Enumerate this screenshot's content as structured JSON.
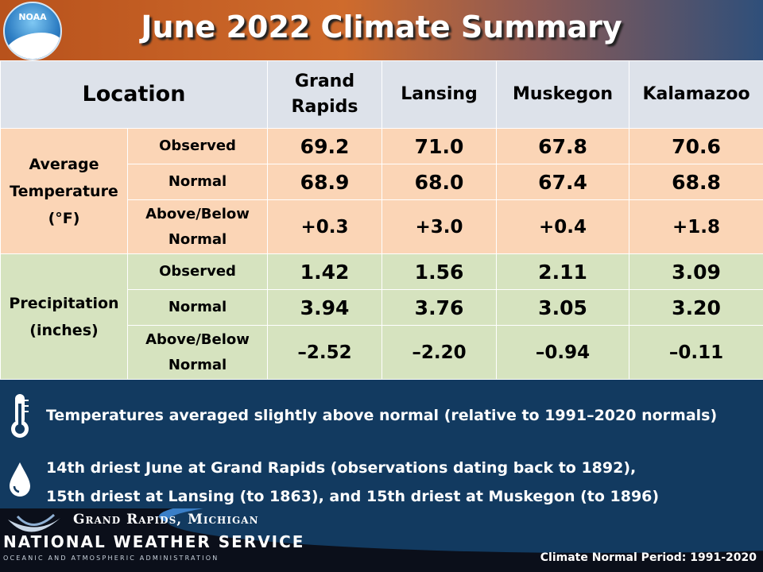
{
  "header": {
    "logo_text": "NOAA",
    "title": "June 2022 Climate Summary"
  },
  "table": {
    "location_header": "Location",
    "columns": [
      "Grand Rapids",
      "Lansing",
      "Muskegon",
      "Kalamazoo"
    ],
    "temperature": {
      "label": "Average Temperature (°F)",
      "observed_label": "Observed",
      "normal_label": "Normal",
      "diff_label": "Above/Below Normal",
      "observed": [
        "69.2",
        "71.0",
        "67.8",
        "70.6"
      ],
      "normal": [
        "68.9",
        "68.0",
        "67.4",
        "68.8"
      ],
      "diff": [
        "+0.3",
        "+3.0",
        "+0.4",
        "+1.8"
      ]
    },
    "precipitation": {
      "label": "Precipitation (inches)",
      "observed_label": "Observed",
      "normal_label": "Normal",
      "diff_label": "Above/Below Normal",
      "observed": [
        "1.42",
        "1.56",
        "2.11",
        "3.09"
      ],
      "normal": [
        "3.94",
        "3.76",
        "3.05",
        "3.20"
      ],
      "diff": [
        "–2.52",
        "–2.20",
        "–0.94",
        "–0.11"
      ]
    }
  },
  "notes": {
    "temperature": "Temperatures averaged slightly above normal (relative to 1991–2020 normals)",
    "precip_line1": "14th driest June at Grand Rapids (observations dating back to 1892),",
    "precip_line2": "15th driest at Lansing (to 1863), and 15th driest at Muskegon (to 1896)",
    "temperature_icon": "thermometer-icon",
    "precip_icon": "water-drop-icon"
  },
  "footer": {
    "office": "Grand Rapids, Michigan",
    "agency": "NATIONAL WEATHER SERVICE",
    "parent": "OCEANIC AND ATMOSPHERIC ADMINISTRATION",
    "normal_period": "Climate Normal Period: 1991-2020"
  },
  "colors": {
    "temperature_bg": "#fbd5b6",
    "precipitation_bg": "#d6e3bf",
    "header_bg": "#dde2ea",
    "temp_diff": "#e69345",
    "precip_diff": "#8c8656",
    "page_bg": "#123a60"
  }
}
